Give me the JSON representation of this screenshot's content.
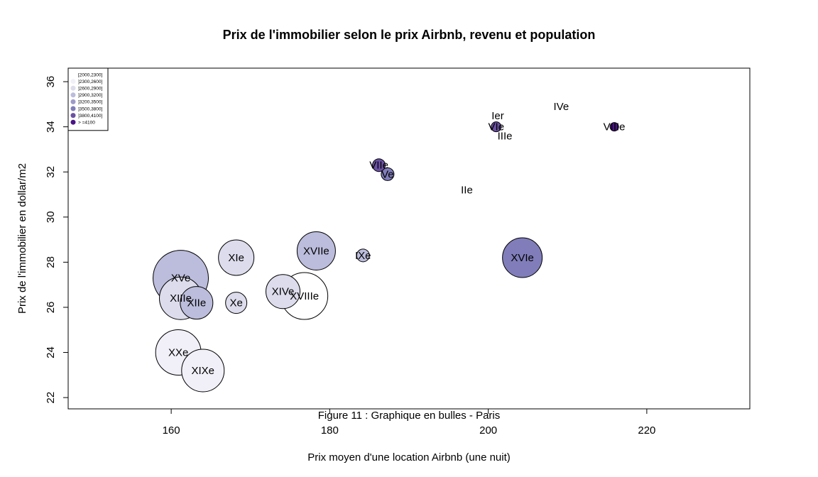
{
  "chart_data": {
    "type": "scatter",
    "title": "Prix de l'immobilier selon le prix Airbnb, revenu et population",
    "xlabel": "Prix moyen d'une location Airbnb (une nuit)",
    "ylabel": "Prix de l'immobilier en dollar/m2",
    "caption": "Figure 11 : Graphique en bulles - Paris",
    "xlim": [
      147,
      233
    ],
    "ylim": [
      21.5,
      36.6
    ],
    "xticks": [
      160,
      180,
      200,
      220
    ],
    "yticks": [
      22,
      24,
      26,
      28,
      30,
      32,
      34,
      36
    ],
    "legend": {
      "placement": "top-left",
      "entries": [
        {
          "label": "[2000,2300]",
          "color": "#ffffff"
        },
        {
          "label": "]2300,2600]",
          "color": "#f1f0f8"
        },
        {
          "label": "]2600,2900]",
          "color": "#dcdcec"
        },
        {
          "label": "]2900,3200]",
          "color": "#bcbddc"
        },
        {
          "label": "]3200,3500]",
          "color": "#9e9ac8"
        },
        {
          "label": "]3500,3800]",
          "color": "#807dba"
        },
        {
          "label": "]3800,4100]",
          "color": "#6a51a3"
        },
        {
          "label": "> =4100",
          "color": "#4a1486"
        }
      ]
    },
    "points": [
      {
        "label": "Ier",
        "x": 201.2,
        "y": 34.5,
        "r": 0,
        "color": "#4a1486"
      },
      {
        "label": "IIe",
        "x": 197.3,
        "y": 31.2,
        "r": 0,
        "color": "#807dba"
      },
      {
        "label": "IIIe",
        "x": 202.1,
        "y": 33.6,
        "r": 0,
        "color": "#9e9ac8"
      },
      {
        "label": "IVe",
        "x": 209.2,
        "y": 34.9,
        "r": 0,
        "color": "#4a1486"
      },
      {
        "label": "Ve",
        "x": 187.3,
        "y": 31.9,
        "r": 9,
        "color": "#807dba"
      },
      {
        "label": "VIe",
        "x": 201.0,
        "y": 34.0,
        "r": 7,
        "color": "#6a51a3"
      },
      {
        "label": "VIIe",
        "x": 186.2,
        "y": 32.3,
        "r": 9,
        "color": "#6a51a3"
      },
      {
        "label": "VIIIe",
        "x": 215.9,
        "y": 34.0,
        "r": 6,
        "color": "#4a1486"
      },
      {
        "label": "IXe",
        "x": 184.2,
        "y": 28.3,
        "r": 9,
        "color": "#bcbddc"
      },
      {
        "label": "Xe",
        "x": 168.2,
        "y": 26.2,
        "r": 15,
        "color": "#dcdcec"
      },
      {
        "label": "XIe",
        "x": 168.2,
        "y": 28.2,
        "r": 25,
        "color": "#dcdcec"
      },
      {
        "label": "XIIe",
        "x": 163.2,
        "y": 26.2,
        "r": 23,
        "color": "#bcbddc"
      },
      {
        "label": "XIIIe",
        "x": 161.2,
        "y": 26.4,
        "r": 30,
        "color": "#dcdcec"
      },
      {
        "label": "XIVe",
        "x": 174.1,
        "y": 26.7,
        "r": 24,
        "color": "#dcdcec"
      },
      {
        "label": "XVe",
        "x": 161.2,
        "y": 27.3,
        "r": 39,
        "color": "#bcbddc"
      },
      {
        "label": "XVIe",
        "x": 204.3,
        "y": 28.2,
        "r": 28,
        "color": "#807dba"
      },
      {
        "label": "XVIIe",
        "x": 178.3,
        "y": 28.5,
        "r": 27,
        "color": "#bcbddc"
      },
      {
        "label": "XVIIIe",
        "x": 176.8,
        "y": 26.5,
        "r": 33,
        "color": "#ffffff"
      },
      {
        "label": "XIXe",
        "x": 164.0,
        "y": 23.2,
        "r": 30,
        "color": "#f1f0f8"
      },
      {
        "label": "XXe",
        "x": 160.9,
        "y": 24.0,
        "r": 32,
        "color": "#f1f0f8"
      }
    ]
  }
}
